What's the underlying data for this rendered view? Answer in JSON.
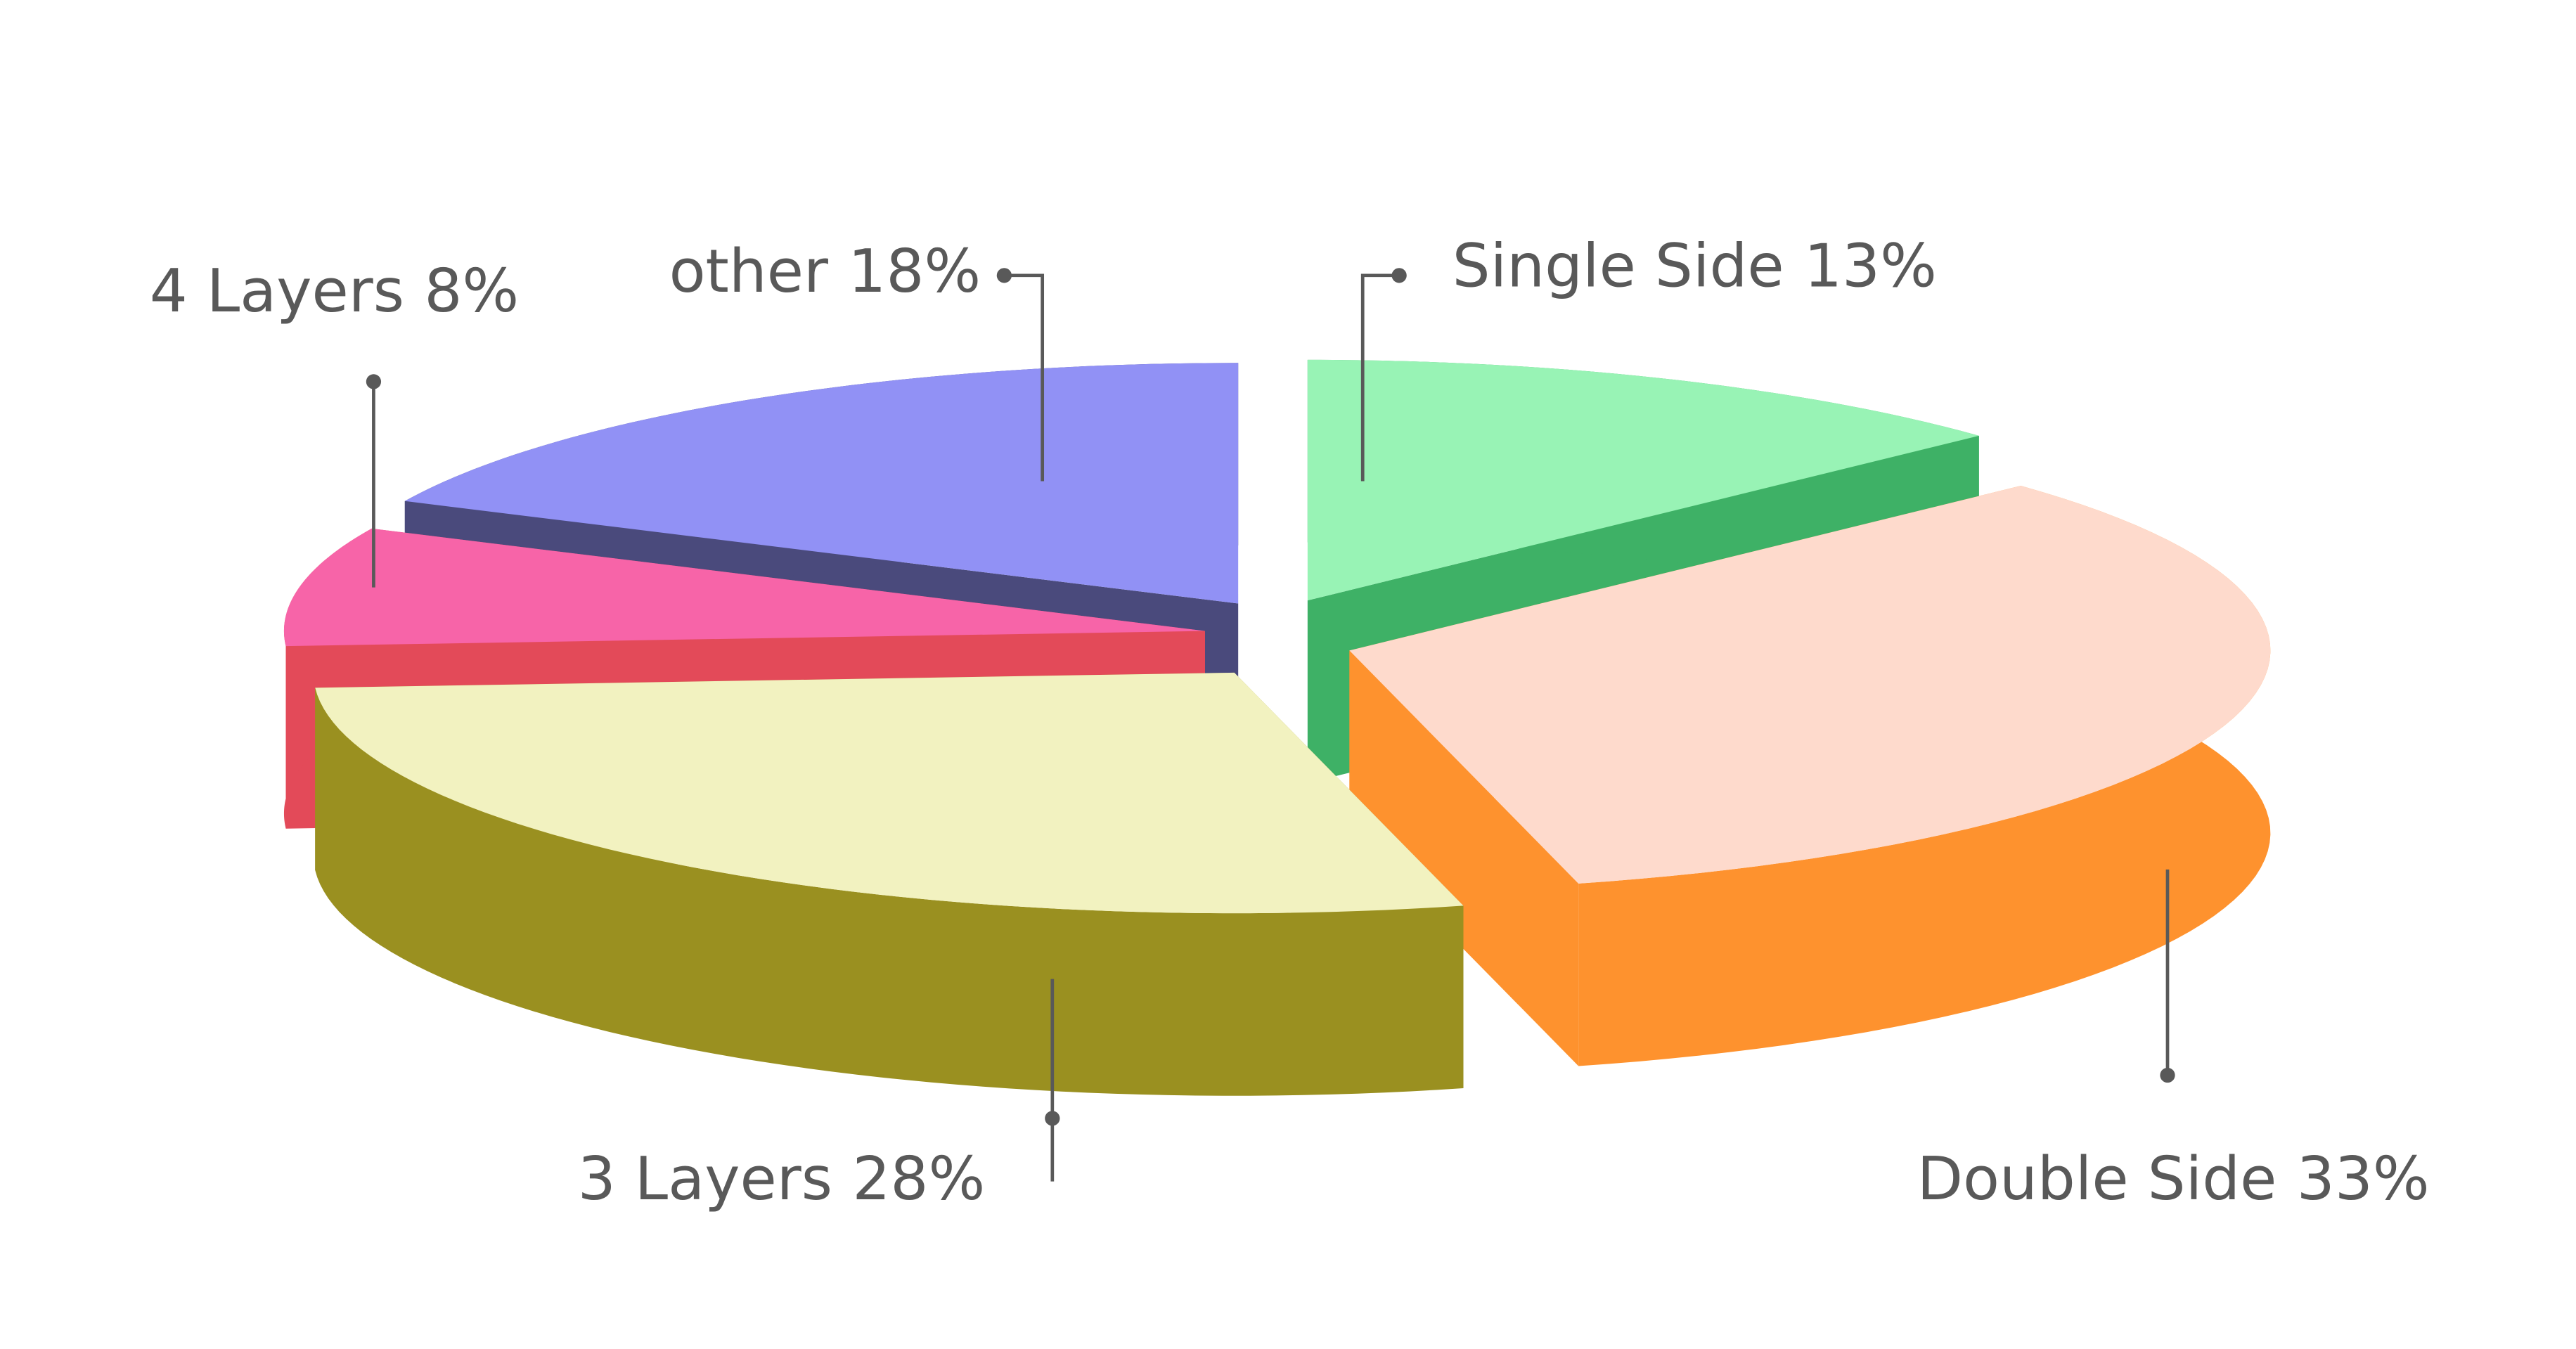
{
  "chart_data": {
    "type": "pie3d",
    "categories": [
      "Single Side",
      "Double Side",
      "3 Layers",
      "4 Layers",
      "other"
    ],
    "values": [
      13,
      33,
      28,
      8,
      18
    ],
    "value_labels": [
      "13%",
      "33%",
      "28%",
      "8%",
      "18%"
    ],
    "colors": [
      "#98f3b5",
      "#fedacc",
      "#f2f2c0",
      "#f764a8",
      "#9191f5"
    ],
    "side_colors": [
      "#3eb166",
      "#fe922e",
      "#9a9020",
      "#e34a59",
      "#4a4a7c"
    ]
  }
}
